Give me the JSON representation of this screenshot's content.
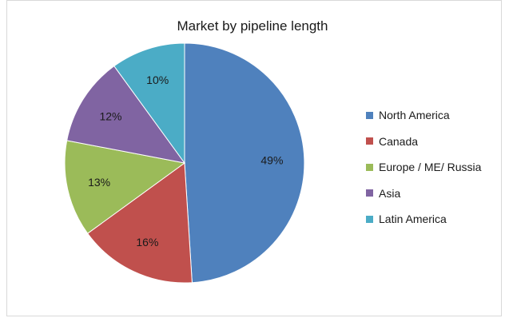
{
  "chart_data": {
    "type": "pie",
    "title": "Market by pipeline length",
    "legend_position": "right",
    "slices": [
      {
        "label": "North America",
        "value": 49,
        "display": "49%",
        "color": "#4f81bd"
      },
      {
        "label": "Canada",
        "value": 16,
        "display": "16%",
        "color": "#c0504d"
      },
      {
        "label": "Europe / ME/ Russia",
        "value": 13,
        "display": "13%",
        "color": "#9bbb59"
      },
      {
        "label": "Asia",
        "value": 12,
        "display": "12%",
        "color": "#8064a2"
      },
      {
        "label": "Latin America",
        "value": 10,
        "display": "10%",
        "color": "#4bacc6"
      }
    ]
  }
}
